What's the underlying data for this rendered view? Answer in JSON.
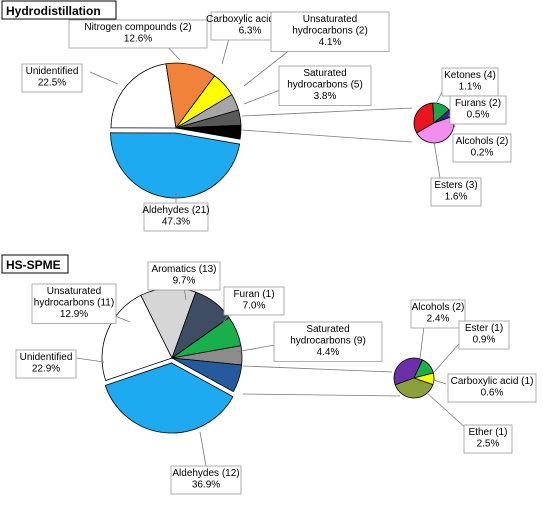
{
  "chart_data": [
    {
      "type": "pie",
      "title": "Hydrodistillation",
      "main": {
        "slices": [
          {
            "name": "Aldehydes (21)",
            "value": 47.3,
            "label": "47.3%",
            "color": "#1eaaf1",
            "exploded": true
          },
          {
            "name": "Unidentified",
            "value": 22.5,
            "label": "22.5%",
            "color": "#ffffff"
          },
          {
            "name": "Nitrogen compounds (2)",
            "value": 12.6,
            "label": "12.6%",
            "color": "#f0823a"
          },
          {
            "name": "Carboxylic acids (9)",
            "value": 6.3,
            "label": "6.3%",
            "color": "#ffff00"
          },
          {
            "name": "Unsaturated hydrocarbons (2)",
            "value": 4.1,
            "label": "4.1%",
            "color": "#a6a6a6"
          },
          {
            "name": "Saturated hydrocarbons (5)",
            "value": 3.8,
            "label": "3.8%",
            "color": "#595959"
          },
          {
            "name": "Other",
            "value": 3.4,
            "color": "#000000",
            "unlabeled": true
          }
        ]
      },
      "sub": {
        "slices": [
          {
            "name": "Ketones (4)",
            "value": 1.1,
            "label": "1.1%",
            "color": "#e8141e"
          },
          {
            "name": "Furans (2)",
            "value": 0.5,
            "label": "0.5%",
            "color": "#18a84b"
          },
          {
            "name": "Alcohols (2)",
            "value": 0.2,
            "label": "0.2%",
            "color": "#2b2b8c"
          },
          {
            "name": "Esters (3)",
            "value": 1.6,
            "label": "1.6%",
            "color": "#f28ef0"
          }
        ]
      }
    },
    {
      "type": "pie",
      "title": "HS-SPME",
      "main": {
        "slices": [
          {
            "name": "Aldehydes (12)",
            "value": 36.9,
            "label": "36.9%",
            "color": "#1eaaf1",
            "exploded": true
          },
          {
            "name": "Unidentified",
            "value": 22.9,
            "label": "22.9%",
            "color": "#ffffff"
          },
          {
            "name": "Unsaturated hydrocarbons (11)",
            "value": 12.9,
            "label": "12.9%",
            "color": "#d6d6d6"
          },
          {
            "name": "Aromatics (13)",
            "value": 9.7,
            "label": "9.7%",
            "color": "#3e4d63"
          },
          {
            "name": "Furan (1)",
            "value": 7.0,
            "label": "7.0%",
            "color": "#18b04a"
          },
          {
            "name": "Saturated hydrocarbons (9)",
            "value": 4.4,
            "label": "4.4%",
            "color": "#8c8c8c"
          },
          {
            "name": "Other",
            "value": 6.4,
            "color": "#255a9c",
            "unlabeled": true
          }
        ]
      },
      "sub": {
        "slices": [
          {
            "name": "Alcohols (2)",
            "value": 2.4,
            "label": "2.4%",
            "color": "#6d2fa8"
          },
          {
            "name": "Ester (1)",
            "value": 0.9,
            "label": "0.9%",
            "color": "#18b04a"
          },
          {
            "name": "Carboxylic acid (1)",
            "value": 0.6,
            "label": "0.6%",
            "color": "#ffff00"
          },
          {
            "name": "Ether (1)",
            "value": 2.5,
            "label": "2.5%",
            "color": "#8aa03a"
          }
        ]
      }
    }
  ]
}
